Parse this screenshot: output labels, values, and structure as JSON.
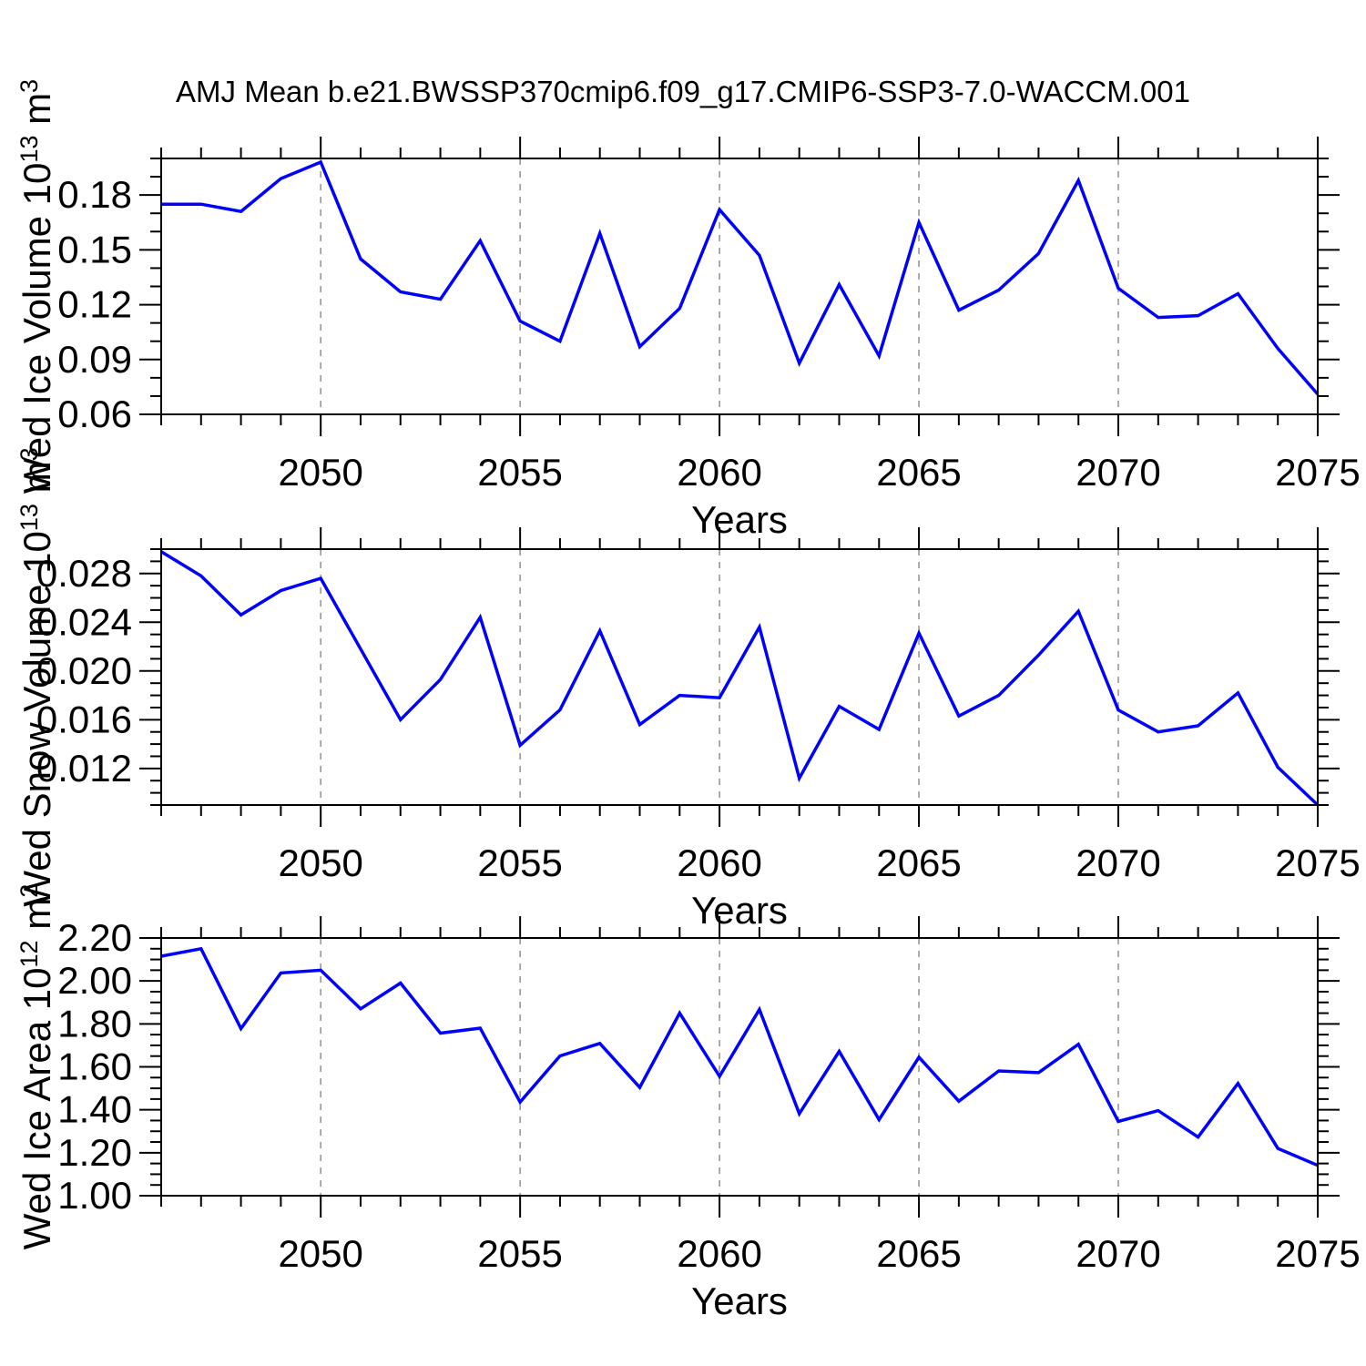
{
  "title": "AMJ Mean b.e21.BWSSP370cmip6.f09_g17.CMIP6-SSP3-7.0-WACCM.001",
  "colors": {
    "line": "#0000FF",
    "frame": "#000000",
    "grid": "#909090",
    "background": "#ffffff",
    "text": "#000000"
  },
  "chart_data": [
    {
      "type": "line",
      "panel": "ice-volume",
      "x": [
        2046,
        2047,
        2048,
        2049,
        2050,
        2051,
        2052,
        2053,
        2054,
        2055,
        2056,
        2057,
        2058,
        2059,
        2060,
        2061,
        2062,
        2063,
        2064,
        2065,
        2066,
        2067,
        2068,
        2069,
        2070,
        2071,
        2072,
        2073,
        2074,
        2075
      ],
      "values": [
        0.175,
        0.175,
        0.171,
        0.189,
        0.198,
        0.145,
        0.127,
        0.123,
        0.155,
        0.111,
        0.1,
        0.159,
        0.097,
        0.118,
        0.172,
        0.147,
        0.088,
        0.131,
        0.092,
        0.165,
        0.117,
        0.128,
        0.148,
        0.188,
        0.129,
        0.113,
        0.114,
        0.126,
        0.096,
        0.071
      ],
      "ylabel": "Wed Ice Volume 10^13 m^3",
      "xlabel": "Years",
      "xlim": [
        2046,
        2075
      ],
      "ylim": [
        0.06,
        0.2
      ],
      "yticks": [
        0.06,
        0.09,
        0.12,
        0.15,
        0.18
      ],
      "ytick_labels": [
        "0.06",
        "0.09",
        "0.12",
        "0.15",
        "0.18"
      ],
      "yminor_step": 0.01,
      "xticks": [
        2050,
        2055,
        2060,
        2065,
        2070,
        2075
      ],
      "xtick_labels": [
        "2050",
        "2055",
        "2060",
        "2065",
        "2070",
        "2075"
      ],
      "xminor_step": 1,
      "grid_x": [
        2050,
        2055,
        2060,
        2065,
        2070
      ],
      "grid_style": "dashed",
      "legend": "none"
    },
    {
      "type": "line",
      "panel": "snow-volume",
      "x": [
        2046,
        2047,
        2048,
        2049,
        2050,
        2051,
        2052,
        2053,
        2054,
        2055,
        2056,
        2057,
        2058,
        2059,
        2060,
        2061,
        2062,
        2063,
        2064,
        2065,
        2066,
        2067,
        2068,
        2069,
        2070,
        2071,
        2072,
        2073,
        2074,
        2075
      ],
      "values": [
        0.0298,
        0.0278,
        0.0246,
        0.0266,
        0.0276,
        0.0218,
        0.016,
        0.0193,
        0.0244,
        0.0139,
        0.0168,
        0.0233,
        0.0156,
        0.018,
        0.0178,
        0.0236,
        0.0112,
        0.0171,
        0.0152,
        0.0231,
        0.0163,
        0.018,
        0.0213,
        0.0249,
        0.0168,
        0.015,
        0.0155,
        0.0182,
        0.0121,
        0.009
      ],
      "ylabel": "Wed Snow Volume 10^13 m^3",
      "xlabel": "Years",
      "xlim": [
        2046,
        2075
      ],
      "ylim": [
        0.009,
        0.03
      ],
      "yticks": [
        0.012,
        0.016,
        0.02,
        0.024,
        0.028
      ],
      "ytick_labels": [
        "0.012",
        "0.016",
        "0.020",
        "0.024",
        "0.028"
      ],
      "yminor_step": 0.001,
      "xticks": [
        2050,
        2055,
        2060,
        2065,
        2070,
        2075
      ],
      "xtick_labels": [
        "2050",
        "2055",
        "2060",
        "2065",
        "2070",
        "2075"
      ],
      "xminor_step": 1,
      "grid_x": [
        2050,
        2055,
        2060,
        2065,
        2070
      ],
      "grid_style": "dashed",
      "legend": "none"
    },
    {
      "type": "line",
      "panel": "ice-area",
      "x": [
        2046,
        2047,
        2048,
        2049,
        2050,
        2051,
        2052,
        2053,
        2054,
        2055,
        2056,
        2057,
        2058,
        2059,
        2060,
        2061,
        2062,
        2063,
        2064,
        2065,
        2066,
        2067,
        2068,
        2069,
        2070,
        2071,
        2072,
        2073,
        2074,
        2075
      ],
      "values": [
        2.115,
        2.15,
        1.778,
        2.037,
        2.05,
        1.87,
        1.99,
        1.757,
        1.78,
        1.436,
        1.651,
        1.709,
        1.504,
        1.85,
        1.556,
        1.867,
        1.382,
        1.672,
        1.354,
        1.645,
        1.44,
        1.581,
        1.573,
        1.705,
        1.346,
        1.396,
        1.273,
        1.523,
        1.22,
        1.141
      ],
      "ylabel": "Wed Ice Area 10^12 m^2",
      "xlabel": "Years",
      "xlim": [
        2046,
        2075
      ],
      "ylim": [
        1.0,
        2.2
      ],
      "yticks": [
        1.0,
        1.2,
        1.4,
        1.6,
        1.8,
        2.0,
        2.2
      ],
      "ytick_labels": [
        "1.00",
        "1.20",
        "1.40",
        "1.60",
        "1.80",
        "2.00",
        "2.20"
      ],
      "yminor_step": 0.05,
      "xticks": [
        2050,
        2055,
        2060,
        2065,
        2070,
        2075
      ],
      "xtick_labels": [
        "2050",
        "2055",
        "2060",
        "2065",
        "2070",
        "2075"
      ],
      "xminor_step": 1,
      "grid_x": [
        2050,
        2055,
        2060,
        2065,
        2070
      ],
      "grid_style": "dashed",
      "legend": "none"
    }
  ]
}
